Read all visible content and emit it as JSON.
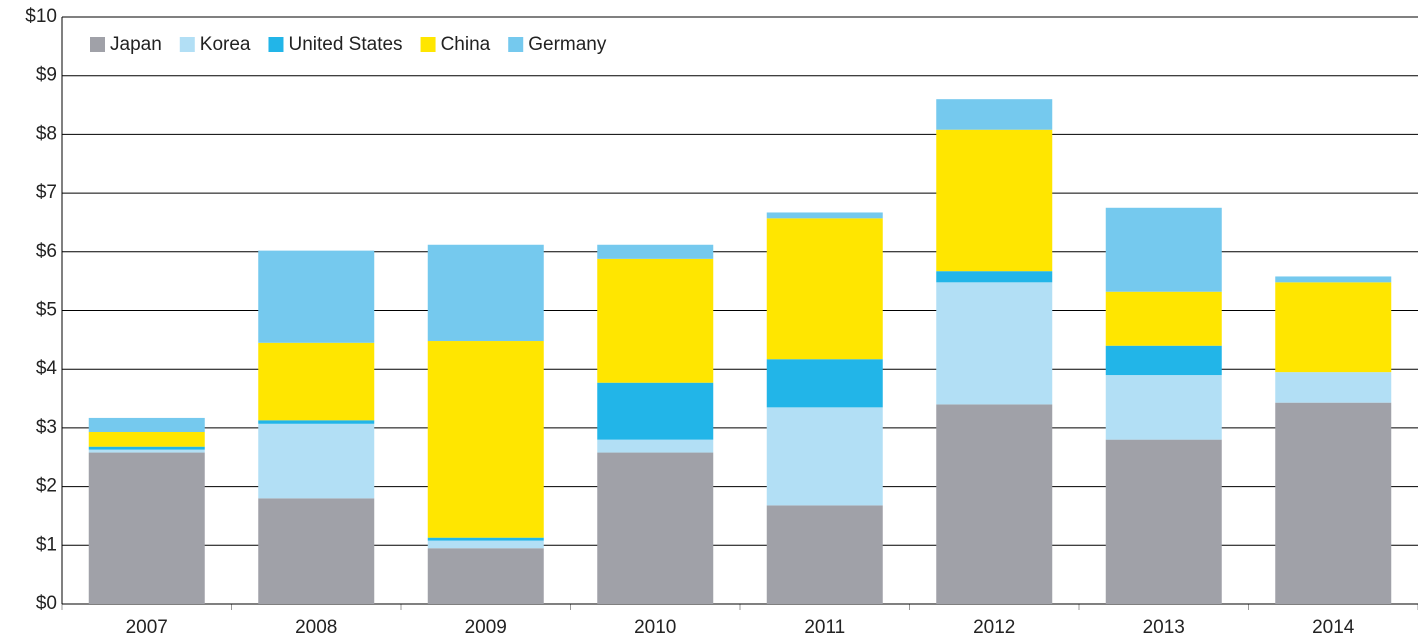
{
  "chart_data": {
    "type": "stacked_bar",
    "categories": [
      "2007",
      "2008",
      "2009",
      "2010",
      "2011",
      "2012",
      "2013",
      "2014"
    ],
    "series": [
      {
        "name": "Japan",
        "color": "#a0a1a8",
        "values": [
          2.58,
          1.8,
          0.95,
          2.58,
          1.68,
          3.4,
          2.8,
          3.43
        ]
      },
      {
        "name": "Korea",
        "color": "#b2dff5",
        "values": [
          0.05,
          1.27,
          0.13,
          0.22,
          1.67,
          2.08,
          1.1,
          0.52
        ]
      },
      {
        "name": "United States",
        "color": "#22b5e8",
        "values": [
          0.05,
          0.06,
          0.05,
          0.97,
          0.82,
          0.19,
          0.5,
          0
        ]
      },
      {
        "name": "China",
        "color": "#ffe600",
        "values": [
          0.25,
          1.32,
          3.35,
          2.11,
          2.4,
          2.41,
          0.92,
          1.53
        ]
      },
      {
        "name": "Germany",
        "color": "#75c9ee",
        "values": [
          0.24,
          1.57,
          1.64,
          0.24,
          0.1,
          0.52,
          1.43,
          0.1
        ]
      }
    ],
    "ylim": [
      0,
      10
    ],
    "yticks": [
      {
        "value": 0,
        "label": "$0"
      },
      {
        "value": 1,
        "label": "$1"
      },
      {
        "value": 2,
        "label": "$2"
      },
      {
        "value": 3,
        "label": "$3"
      },
      {
        "value": 4,
        "label": "$4"
      },
      {
        "value": 5,
        "label": "$5"
      },
      {
        "value": 6,
        "label": "$6"
      },
      {
        "value": 7,
        "label": "$7"
      },
      {
        "value": 8,
        "label": "$8"
      },
      {
        "value": 9,
        "label": "$9"
      },
      {
        "value": 10,
        "label": "$10"
      }
    ],
    "grid": true,
    "legend": "top-left"
  }
}
